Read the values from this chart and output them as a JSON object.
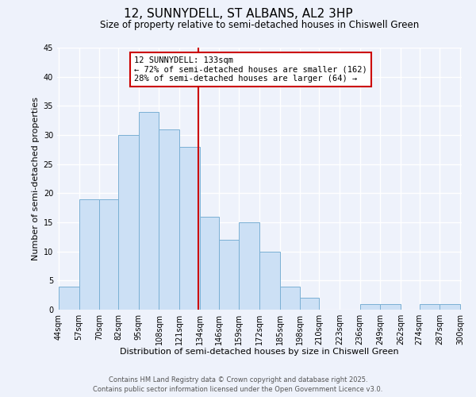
{
  "title": "12, SUNNYDELL, ST ALBANS, AL2 3HP",
  "subtitle": "Size of property relative to semi-detached houses in Chiswell Green",
  "xlabel": "Distribution of semi-detached houses by size in Chiswell Green",
  "ylabel": "Number of semi-detached properties",
  "bin_labels": [
    "44sqm",
    "57sqm",
    "70sqm",
    "82sqm",
    "95sqm",
    "108sqm",
    "121sqm",
    "134sqm",
    "146sqm",
    "159sqm",
    "172sqm",
    "185sqm",
    "198sqm",
    "210sqm",
    "223sqm",
    "236sqm",
    "249sqm",
    "262sqm",
    "274sqm",
    "287sqm",
    "300sqm"
  ],
  "bin_edges": [
    44,
    57,
    70,
    82,
    95,
    108,
    121,
    134,
    146,
    159,
    172,
    185,
    198,
    210,
    223,
    236,
    249,
    262,
    274,
    287,
    300
  ],
  "bar_values": [
    4,
    19,
    19,
    30,
    34,
    31,
    28,
    16,
    12,
    15,
    10,
    4,
    2,
    0,
    0,
    1,
    1,
    0,
    1,
    1
  ],
  "bar_color": "#cce0f5",
  "bar_edgecolor": "#7ab0d4",
  "marker_value": 133,
  "marker_color": "#cc0000",
  "annotation_title": "12 SUNNYDELL: 133sqm",
  "annotation_line1": "← 72% of semi-detached houses are smaller (162)",
  "annotation_line2": "28% of semi-detached houses are larger (64) →",
  "annotation_box_edgecolor": "#cc0000",
  "ylim": [
    0,
    45
  ],
  "yticks": [
    0,
    5,
    10,
    15,
    20,
    25,
    30,
    35,
    40,
    45
  ],
  "background_color": "#eef2fb",
  "grid_color": "#ffffff",
  "footer_line1": "Contains HM Land Registry data © Crown copyright and database right 2025.",
  "footer_line2": "Contains public sector information licensed under the Open Government Licence v3.0.",
  "title_fontsize": 11,
  "subtitle_fontsize": 8.5,
  "axis_label_fontsize": 8,
  "tick_fontsize": 7,
  "annotation_fontsize": 7.5,
  "footer_fontsize": 6
}
